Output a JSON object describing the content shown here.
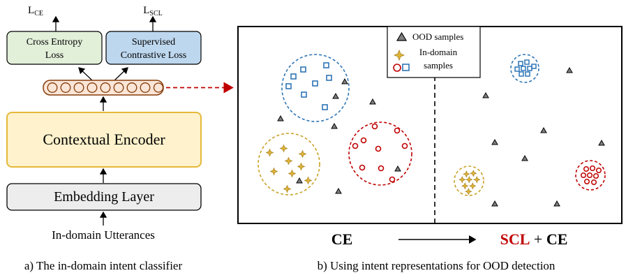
{
  "left_panel": {
    "output_ce": "L",
    "output_ce_sub": "CE",
    "output_scl": "L",
    "output_scl_sub": "SCL",
    "ce_loss_box": [
      "Cross Entropy",
      "Loss"
    ],
    "scl_loss_box": [
      "Supervised",
      "Contrastive Loss"
    ],
    "encoder_label": "Contextual Encoder",
    "embedding_label": "Embedding Layer",
    "input_label": "In-domain Utterances",
    "caption": "a) The in-domain intent classifier"
  },
  "right_panel": {
    "legend": {
      "ood_label": "OOD samples",
      "in_domain_label": [
        "In-domain",
        "samples"
      ]
    },
    "bottom_left_label": "CE",
    "bottom_right_scl": "SCL",
    "bottom_right_plus": " + ",
    "bottom_right_ce": "CE",
    "caption": "b) Using intent representations for OOD detection"
  },
  "colors": {
    "ce_box_fill": "#e2efd9",
    "scl_box_fill": "#bdd7ee",
    "encoder_fill": "#fff2cc",
    "encoder_border": "#e5b83a",
    "embedding_fill": "#ededed",
    "vector_fill": "#fbe5d6",
    "vector_border": "#843c0c",
    "blue_cluster": "#2e75b6",
    "gold_cluster": "#c9a227",
    "red_cluster": "#c00000",
    "arrow_red": "#c00000"
  }
}
